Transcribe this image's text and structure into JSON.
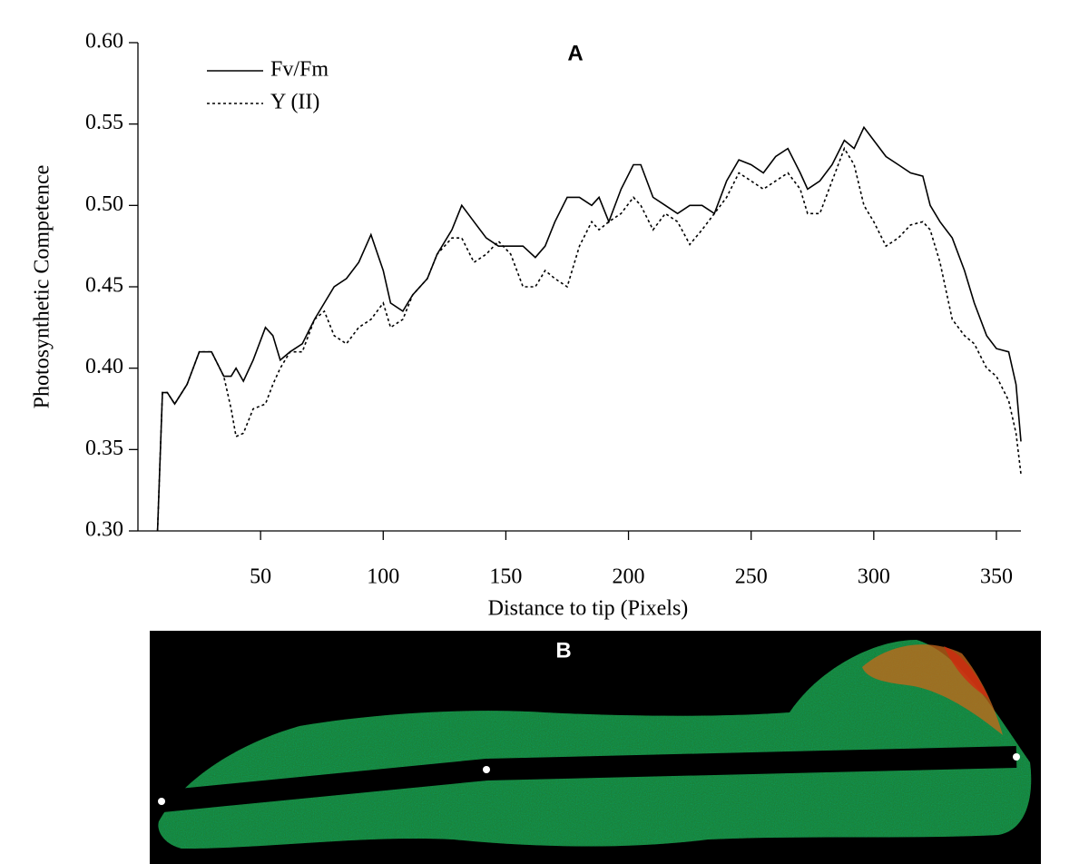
{
  "chart_data": {
    "type": "line",
    "title": "A",
    "annotation": "B",
    "xlabel": "Distance to tip (Pixels)",
    "ylabel": "Photosynthetic Competence",
    "x": [
      8,
      10,
      12,
      15,
      20,
      25,
      30,
      35,
      38,
      40,
      43,
      47,
      52,
      55,
      58,
      62,
      67,
      72,
      76,
      80,
      85,
      90,
      95,
      100,
      103,
      108,
      112,
      118,
      122,
      128,
      132,
      137,
      142,
      147,
      152,
      157,
      162,
      166,
      170,
      175,
      180,
      185,
      188,
      192,
      197,
      202,
      205,
      210,
      215,
      220,
      225,
      230,
      235,
      240,
      245,
      250,
      255,
      260,
      265,
      270,
      273,
      278,
      283,
      288,
      292,
      296,
      300,
      305,
      310,
      315,
      320,
      323,
      327,
      332,
      337,
      341,
      346,
      350,
      355,
      358,
      360
    ],
    "series": [
      {
        "name": "Fv/Fm",
        "color": "#000000",
        "style": "solid",
        "values": [
          0.3,
          0.385,
          0.385,
          0.378,
          0.39,
          0.41,
          0.41,
          0.395,
          0.395,
          0.4,
          0.392,
          0.405,
          0.425,
          0.42,
          0.405,
          0.41,
          0.415,
          0.43,
          0.44,
          0.45,
          0.455,
          0.465,
          0.482,
          0.46,
          0.44,
          0.435,
          0.445,
          0.455,
          0.47,
          0.485,
          0.5,
          0.49,
          0.48,
          0.475,
          0.475,
          0.475,
          0.468,
          0.475,
          0.49,
          0.505,
          0.505,
          0.5,
          0.505,
          0.49,
          0.51,
          0.525,
          0.525,
          0.505,
          0.5,
          0.495,
          0.5,
          0.5,
          0.495,
          0.515,
          0.528,
          0.525,
          0.52,
          0.53,
          0.535,
          0.52,
          0.51,
          0.515,
          0.525,
          0.54,
          0.535,
          0.548,
          0.54,
          0.53,
          0.525,
          0.52,
          0.518,
          0.5,
          0.49,
          0.48,
          0.46,
          0.44,
          0.42,
          0.412,
          0.41,
          0.39,
          0.355
        ]
      },
      {
        "name": "Y (II)",
        "color": "#000000",
        "style": "dotted",
        "values": [
          0.3,
          0.385,
          0.385,
          0.378,
          0.39,
          0.41,
          0.41,
          0.395,
          0.375,
          0.358,
          0.36,
          0.375,
          0.378,
          0.39,
          0.4,
          0.41,
          0.41,
          0.43,
          0.435,
          0.42,
          0.415,
          0.425,
          0.43,
          0.44,
          0.425,
          0.43,
          0.445,
          0.455,
          0.47,
          0.48,
          0.48,
          0.465,
          0.47,
          0.478,
          0.47,
          0.45,
          0.45,
          0.46,
          0.455,
          0.45,
          0.475,
          0.49,
          0.485,
          0.49,
          0.495,
          0.505,
          0.5,
          0.485,
          0.495,
          0.49,
          0.476,
          0.485,
          0.495,
          0.505,
          0.52,
          0.515,
          0.51,
          0.515,
          0.52,
          0.51,
          0.495,
          0.495,
          0.515,
          0.535,
          0.525,
          0.5,
          0.49,
          0.475,
          0.48,
          0.488,
          0.49,
          0.485,
          0.465,
          0.43,
          0.42,
          0.415,
          0.4,
          0.395,
          0.38,
          0.36,
          0.335
        ]
      }
    ],
    "xlim": [
      0,
      360
    ],
    "ylim": [
      0.3,
      0.6
    ],
    "xticks": [
      50,
      100,
      150,
      200,
      250,
      300,
      350
    ],
    "yticks": [
      {
        "value": 0.3,
        "label": "0.30"
      },
      {
        "value": 0.35,
        "label": "0.35"
      },
      {
        "value": 0.4,
        "label": "0.40"
      },
      {
        "value": 0.45,
        "label": "0.45"
      },
      {
        "value": 0.5,
        "label": "0.50"
      },
      {
        "value": 0.55,
        "label": "0.55"
      },
      {
        "value": 0.6,
        "label": "0.60"
      }
    ],
    "legend": "top-left",
    "grid": false
  }
}
